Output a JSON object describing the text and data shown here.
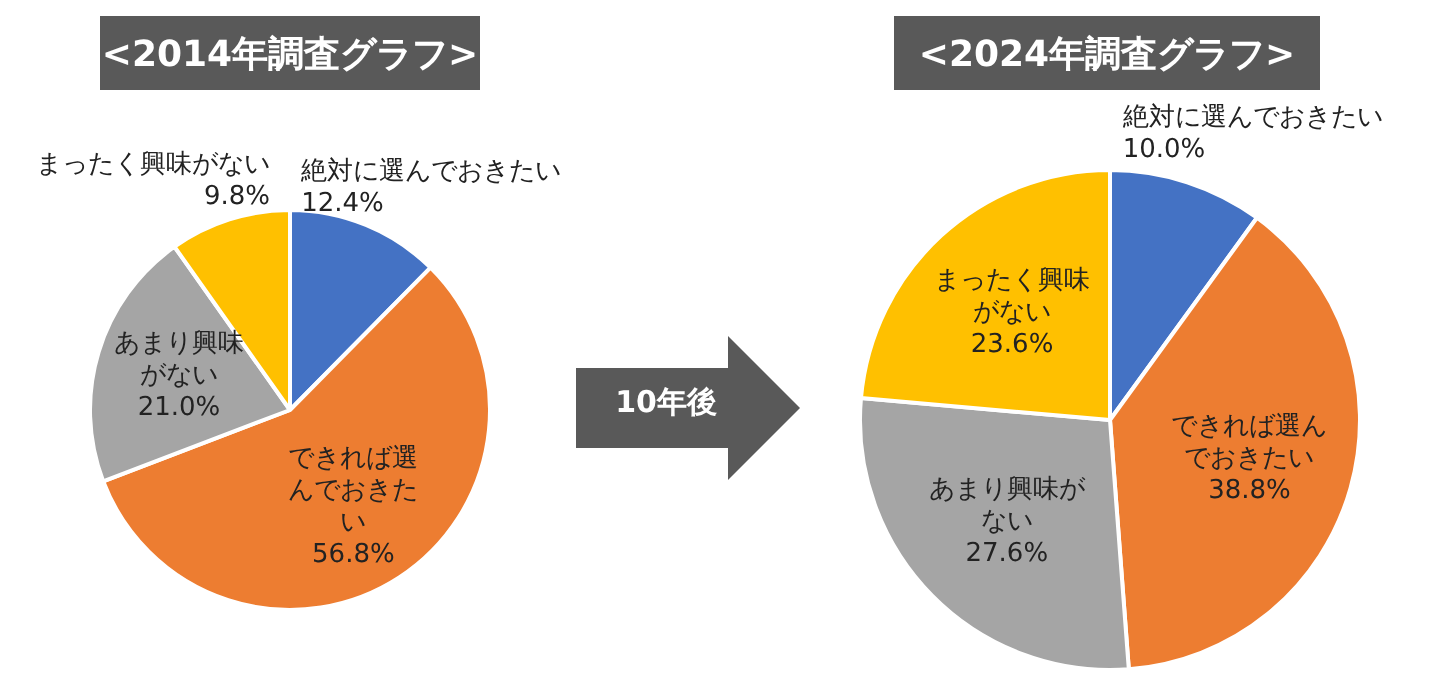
{
  "chart_data": [
    {
      "type": "pie",
      "title": "<2014年調査グラフ>",
      "categories": [
        "絶対に選んでおきたい",
        "できれば選んでおきたい",
        "あまり興味がない",
        "まったく興味がない"
      ],
      "values": [
        12.4,
        56.8,
        21.0,
        9.8
      ],
      "value_labels": [
        "12.4%",
        "56.8%",
        "21.0%",
        "9.8%"
      ],
      "colors": [
        "#4472c4",
        "#ed7d31",
        "#a5a5a5",
        "#ffc000"
      ],
      "legend": false,
      "annotations": [
        "10年後"
      ]
    },
    {
      "type": "pie",
      "title": "<2024年調査グラフ>",
      "categories": [
        "絶対に選んでおきたい",
        "できれば選んでおきたい",
        "あまり興味がない",
        "まったく興味がない"
      ],
      "values": [
        10.0,
        38.8,
        27.6,
        23.6
      ],
      "value_labels": [
        "10.0%",
        "38.8%",
        "27.6%",
        "23.6%"
      ],
      "colors": [
        "#4472c4",
        "#ed7d31",
        "#a5a5a5",
        "#ffc000"
      ],
      "legend": false
    }
  ]
}
